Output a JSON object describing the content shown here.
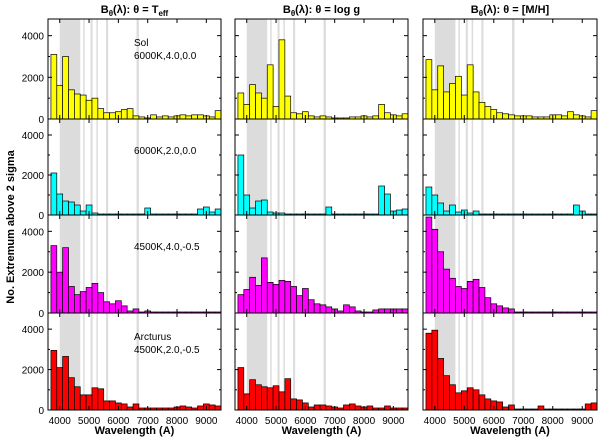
{
  "chart_data": {
    "type": "bar",
    "title": "B_θ(λ) histograms of extremum counts vs wavelength",
    "xlabel": "Wavelength (A)",
    "ylabel": "No. Extremum above 2 sigma",
    "xlim": [
      3600,
      9500
    ],
    "ylim": [
      0,
      4800
    ],
    "x_ticks": [
      "4000",
      "5000",
      "6000",
      "7000",
      "8000",
      "9000"
    ],
    "y_ticks": [
      "0",
      "2000",
      "4000"
    ],
    "bin_edges": [
      3700,
      3900,
      4100,
      4300,
      4500,
      4700,
      4900,
      5100,
      5300,
      5500,
      5700,
      5900,
      6100,
      6300,
      6500,
      6700,
      6900,
      7100,
      7300,
      7500,
      7700,
      7900,
      8100,
      8300,
      8500,
      8700,
      8900,
      9100,
      9300,
      9500
    ],
    "shaded_bands": [
      [
        4000,
        4700
      ],
      [
        4800,
        4850
      ],
      [
        5050,
        5120
      ],
      [
        5250,
        5300
      ],
      [
        5580,
        5650
      ],
      [
        6620,
        6700
      ]
    ],
    "columns": [
      {
        "title": "B",
        "sub": "θ",
        "rest": "(λ): θ = ",
        "param": "T",
        "param_sub": "eff"
      },
      {
        "title": "B",
        "sub": "θ",
        "rest": "(λ): θ = ",
        "param": "log g",
        "param_sub": ""
      },
      {
        "title": "B",
        "sub": "θ",
        "rest": "(λ): θ = ",
        "param": "[M/H]",
        "param_sub": ""
      }
    ],
    "rows": [
      {
        "label_lines": [
          "Sol",
          "6000K,4.0,0.0"
        ],
        "color": "#ffff00",
        "series": [
          {
            "name": "Teff",
            "values": [
              3100,
              1600,
              3000,
              1400,
              1200,
              1150,
              900,
              1000,
              500,
              300,
              300,
              350,
              450,
              500,
              150,
              100,
              50,
              200,
              100,
              150,
              100,
              150,
              200,
              150,
              200,
              200,
              150,
              100,
              400
            ]
          },
          {
            "name": "logg",
            "values": [
              1250,
              700,
              1650,
              1250,
              1000,
              2600,
              600,
              3800,
              1100,
              300,
              250,
              350,
              150,
              100,
              150,
              100,
              50,
              50,
              50,
              100,
              100,
              150,
              100,
              150,
              700,
              300,
              200,
              150,
              250
            ]
          },
          {
            "name": "M/H",
            "values": [
              2850,
              1400,
              2550,
              1300,
              1700,
              2050,
              1150,
              2600,
              1300,
              800,
              600,
              450,
              300,
              250,
              200,
              150,
              150,
              150,
              100,
              100,
              100,
              200,
              200,
              150,
              350,
              200,
              150,
              100,
              400
            ]
          }
        ]
      },
      {
        "label_lines": [
          "6000K,2.0,0.0"
        ],
        "color": "#00ffff",
        "series": [
          {
            "name": "Teff",
            "values": [
              2100,
              1050,
              700,
              650,
              500,
              200,
              500,
              100,
              50,
              50,
              50,
              50,
              50,
              50,
              50,
              50,
              350,
              50,
              50,
              50,
              50,
              50,
              50,
              50,
              50,
              300,
              400,
              150,
              300
            ]
          },
          {
            "name": "logg",
            "values": [
              3000,
              1000,
              350,
              700,
              750,
              150,
              100,
              100,
              50,
              50,
              50,
              50,
              50,
              50,
              50,
              400,
              50,
              50,
              50,
              50,
              50,
              50,
              50,
              50,
              1450,
              1050,
              200,
              250,
              300
            ]
          },
          {
            "name": "M/H",
            "values": [
              1400,
              1000,
              600,
              200,
              500,
              150,
              250,
              100,
              200,
              50,
              50,
              50,
              50,
              50,
              50,
              50,
              50,
              50,
              50,
              50,
              50,
              50,
              50,
              50,
              50,
              500,
              200,
              50,
              50
            ]
          }
        ]
      },
      {
        "label_lines": [
          "4500K,4.0,-0.5"
        ],
        "color": "#ff00ff",
        "series": [
          {
            "name": "Teff",
            "values": [
              3300,
              2000,
              3200,
              1300,
              900,
              1050,
              1250,
              1450,
              1000,
              550,
              450,
              600,
              350,
              100,
              200,
              50,
              100,
              50,
              50,
              50,
              50,
              50,
              50,
              50,
              50,
              50,
              50,
              50,
              50
            ]
          },
          {
            "name": "logg",
            "values": [
              900,
              1150,
              1750,
              1350,
              2700,
              1500,
              1400,
              1600,
              1550,
              1300,
              850,
              1200,
              650,
              450,
              400,
              300,
              200,
              100,
              400,
              300,
              100,
              50,
              50,
              150,
              200,
              200,
              200,
              200,
              200
            ]
          },
          {
            "name": "M/H",
            "values": [
              4700,
              4100,
              3000,
              2150,
              1700,
              1300,
              1200,
              1550,
              1650,
              1250,
              750,
              450,
              350,
              250,
              200,
              50,
              50,
              50,
              50,
              50,
              50,
              50,
              50,
              50,
              50,
              50,
              50,
              50,
              50
            ]
          }
        ]
      },
      {
        "label_lines": [
          "Arcturus",
          "4500K,2.0,-0.5"
        ],
        "color": "#ff0000",
        "series": [
          {
            "name": "Teff",
            "values": [
              2950,
              2100,
              2650,
              1600,
              1150,
              750,
              750,
              1100,
              1050,
              450,
              450,
              350,
              300,
              150,
              300,
              100,
              100,
              100,
              100,
              100,
              100,
              150,
              200,
              150,
              100,
              200,
              300,
              250,
              200
            ]
          },
          {
            "name": "logg",
            "values": [
              2100,
              800,
              1500,
              1250,
              1150,
              1100,
              1200,
              900,
              1550,
              550,
              500,
              350,
              150,
              250,
              250,
              200,
              150,
              100,
              250,
              300,
              200,
              150,
              200,
              100,
              100,
              200,
              100,
              100,
              100
            ]
          },
          {
            "name": "M/H",
            "values": [
              3800,
              3950,
              2550,
              1700,
              1250,
              850,
              950,
              1100,
              1000,
              750,
              550,
              450,
              400,
              150,
              250,
              50,
              50,
              50,
              50,
              200,
              50,
              50,
              50,
              50,
              50,
              50,
              50,
              300,
              350
            ]
          }
        ]
      }
    ]
  }
}
